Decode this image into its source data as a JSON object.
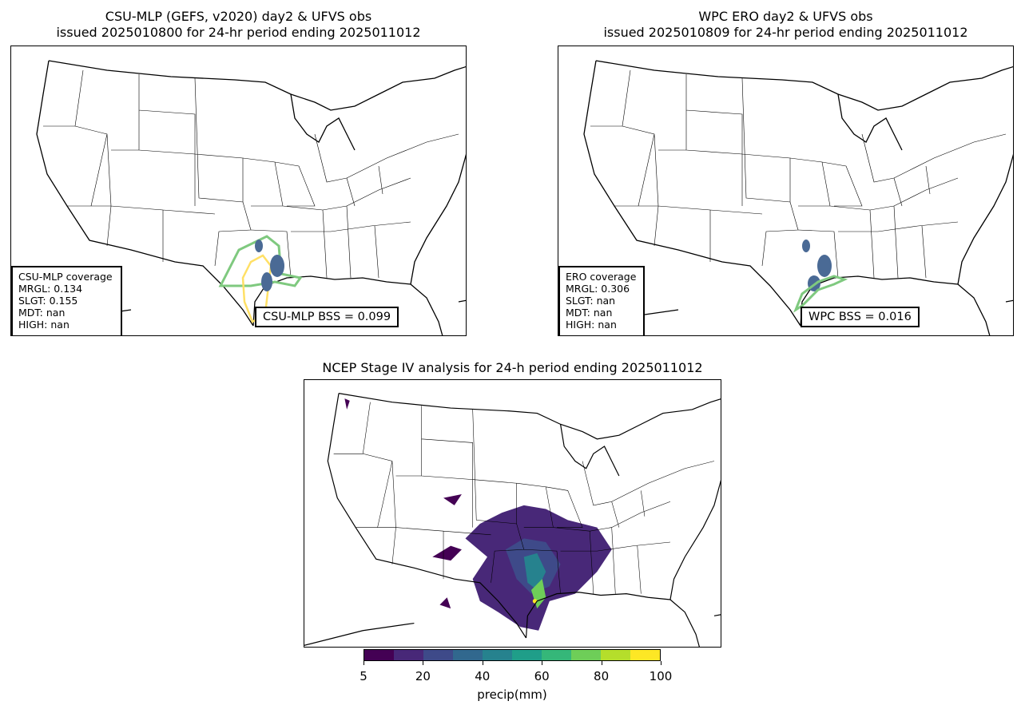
{
  "panels": [
    {
      "title1": "CSU-MLP (GEFS, v2020) day2 & UFVS obs",
      "title2": "issued 2025010800 for 24-hr period ending 2025011012",
      "legend": [
        "CSU-MLP coverage",
        "MRGL: 0.134",
        "SLGT: 0.155",
        "MDT: nan",
        "HIGH: nan"
      ],
      "bss": "CSU-MLP BSS = 0.099"
    },
    {
      "title1": "WPC ERO day2 & UFVS obs",
      "title2": "issued 2025010809 for 24-hr period ending 2025011012",
      "legend": [
        "ERO coverage",
        "MRGL: 0.306",
        "SLGT: nan",
        "MDT: nan",
        "HIGH: nan"
      ],
      "bss": "WPC BSS = 0.016"
    },
    {
      "title1": "NCEP Stage IV analysis for 24-h period ending 2025011012"
    }
  ],
  "colorbar": {
    "label": "precip(mm)",
    "bounds": [
      5,
      10,
      20,
      30,
      40,
      50,
      60,
      70,
      80,
      90,
      100
    ],
    "ticks": [
      "5",
      "20",
      "40",
      "60",
      "80",
      "100"
    ],
    "colors": [
      "#440154",
      "#482878",
      "#3e4a89",
      "#31688e",
      "#26828e",
      "#1f9e89",
      "#35b779",
      "#6ece58",
      "#b5de2b",
      "#fde725"
    ]
  },
  "colors": {
    "mrgl": "#7fc97f",
    "slgt": "#ffe066",
    "obs": "#4a6a95"
  }
}
